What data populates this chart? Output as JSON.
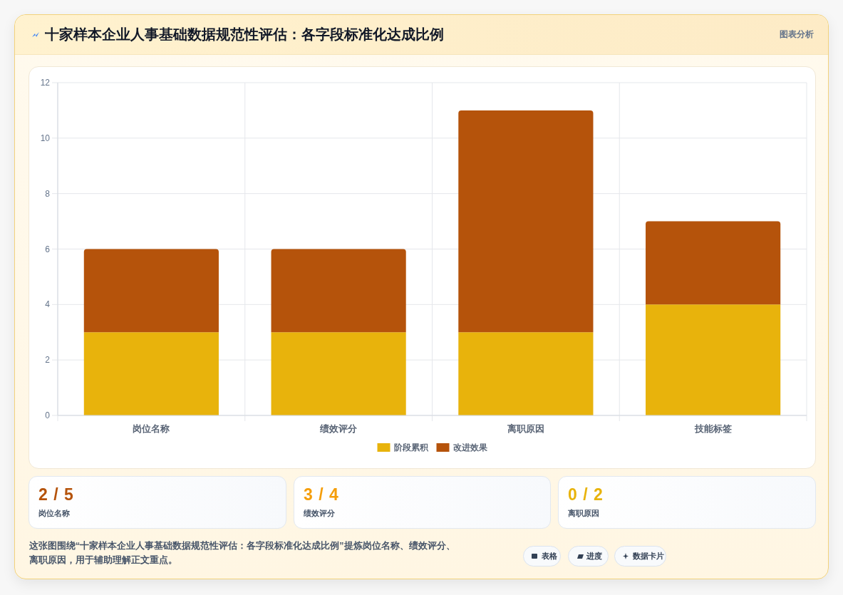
{
  "chart_data": [
    {
      "type": "bar",
      "title": "十家样本企业人事基础数据规范性评估：各字段标准化达成比例",
      "categories": [
        "岗位名称",
        "绩效评分",
        "离职原因",
        "技能标签"
      ],
      "series": [
        {
          "name": "阶段累积",
          "color": "#e8b30c",
          "values": [
            3,
            3,
            3,
            4
          ]
        },
        {
          "name": "改进效果",
          "color": "#b5530b",
          "values": [
            3,
            3,
            8,
            3
          ]
        }
      ],
      "stacked": true,
      "ylim": [
        0,
        12
      ],
      "yticks": [
        0,
        2,
        4,
        6,
        8,
        10,
        12
      ],
      "grid": true,
      "legend": "bottom",
      "annotations": [
        "图表分析",
        "这张图围绕“十家样本企业人事基础数据规范性评估：各字段标准化达成比例”提炼岗位名称、绩效评分、离职原因，用于辅助理解正文重点。",
        "表格",
        "进度",
        "数据卡片"
      ]
    },
    {
      "type": "other",
      "title": "2 / 5",
      "subtitle": "岗位名称",
      "color": "#b5530b"
    },
    {
      "type": "other",
      "title": "3 / 4",
      "subtitle": "绩效评分",
      "color": "#f59e0b"
    },
    {
      "type": "other",
      "title": "0 / 2",
      "subtitle": "离职原因",
      "color": "#e8b30c"
    }
  ]
}
